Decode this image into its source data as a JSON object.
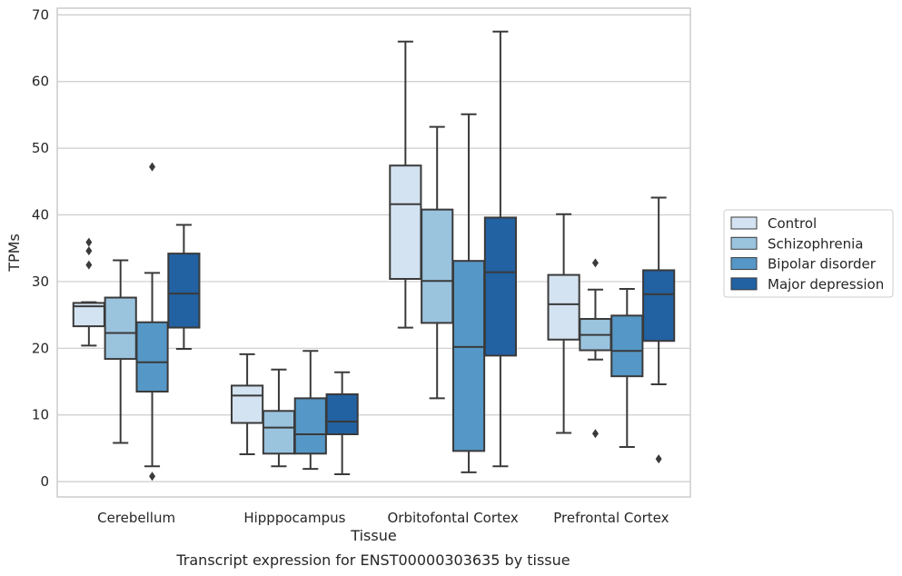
{
  "chart_data": {
    "type": "box",
    "xlabel": "Tissue",
    "ylabel": "TPMs",
    "caption": "Transcript expression for ENST00000303635 by tissue",
    "ylim": [
      -2.3,
      71
    ],
    "yticks": [
      0,
      10,
      20,
      30,
      40,
      50,
      60,
      70
    ],
    "grid": "horizontal",
    "legend_position": "right",
    "categories": [
      "Cerebellum",
      "Hipppocampus",
      "Orbitofontal Cortex",
      "Prefrontal Cortex"
    ],
    "series": [
      {
        "name": "Control",
        "color": "#d3e3f1",
        "boxes": [
          {
            "whislo": 20.4,
            "q1": 23.3,
            "med": 26.3,
            "q3": 26.8,
            "whishi": 26.9,
            "fliers": [
              32.5,
              34.6,
              35.9
            ]
          },
          {
            "whislo": 4.1,
            "q1": 8.8,
            "med": 12.9,
            "q3": 14.4,
            "whishi": 19.1,
            "fliers": []
          },
          {
            "whislo": 23.1,
            "q1": 30.4,
            "med": 41.6,
            "q3": 47.4,
            "whishi": 66.0,
            "fliers": []
          },
          {
            "whislo": 7.3,
            "q1": 21.3,
            "med": 26.6,
            "q3": 31.0,
            "whishi": 40.1,
            "fliers": []
          }
        ]
      },
      {
        "name": "Schizophrenia",
        "color": "#9ac3de",
        "boxes": [
          {
            "whislo": 5.8,
            "q1": 18.4,
            "med": 22.3,
            "q3": 27.6,
            "whishi": 33.2,
            "fliers": []
          },
          {
            "whislo": 2.3,
            "q1": 4.2,
            "med": 8.1,
            "q3": 10.6,
            "whishi": 16.8,
            "fliers": []
          },
          {
            "whislo": 12.5,
            "q1": 23.8,
            "med": 30.1,
            "q3": 40.8,
            "whishi": 53.2,
            "fliers": []
          },
          {
            "whislo": 18.3,
            "q1": 19.7,
            "med": 22.0,
            "q3": 24.4,
            "whishi": 28.8,
            "fliers": [
              7.2,
              32.8
            ]
          }
        ]
      },
      {
        "name": "Bipolar disorder",
        "color": "#5597c6",
        "boxes": [
          {
            "whislo": 2.3,
            "q1": 13.5,
            "med": 17.9,
            "q3": 23.9,
            "whishi": 31.3,
            "fliers": [
              0.8,
              47.2
            ]
          },
          {
            "whislo": 1.9,
            "q1": 4.2,
            "med": 7.1,
            "q3": 12.5,
            "whishi": 19.6,
            "fliers": []
          },
          {
            "whislo": 1.4,
            "q1": 4.6,
            "med": 20.2,
            "q3": 33.1,
            "whishi": 55.1,
            "fliers": []
          },
          {
            "whislo": 5.2,
            "q1": 15.8,
            "med": 19.6,
            "q3": 24.9,
            "whishi": 28.9,
            "fliers": []
          }
        ]
      },
      {
        "name": "Major depression",
        "color": "#2261a2",
        "boxes": [
          {
            "whislo": 19.9,
            "q1": 23.1,
            "med": 28.2,
            "q3": 34.2,
            "whishi": 38.5,
            "fliers": []
          },
          {
            "whislo": 1.1,
            "q1": 7.1,
            "med": 9.0,
            "q3": 13.1,
            "whishi": 16.4,
            "fliers": []
          },
          {
            "whislo": 2.3,
            "q1": 18.9,
            "med": 31.4,
            "q3": 39.6,
            "whishi": 67.5,
            "fliers": []
          },
          {
            "whislo": 14.6,
            "q1": 21.1,
            "med": 28.1,
            "q3": 31.7,
            "whishi": 42.6,
            "fliers": [
              3.4
            ]
          }
        ]
      }
    ]
  }
}
